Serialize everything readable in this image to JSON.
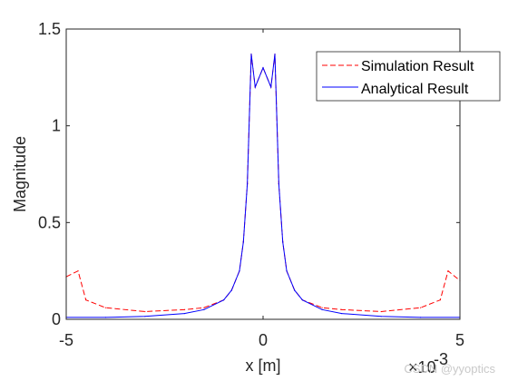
{
  "chart_data": {
    "type": "line",
    "xlabel": "x [m]",
    "ylabel": "Magnitude",
    "x_exponent_label": "×10",
    "x_exponent_power": "-3",
    "xlim": [
      -0.005,
      0.005
    ],
    "ylim": [
      0,
      1.5
    ],
    "xticks": [
      -0.005,
      0,
      0.005
    ],
    "xtick_labels": [
      "-5",
      "0",
      "5"
    ],
    "yticks": [
      0,
      0.5,
      1,
      1.5
    ],
    "ytick_labels": [
      "0",
      "0.5",
      "1",
      "1.5"
    ],
    "grid": false,
    "legend_position": "top-right",
    "series": [
      {
        "name": "Simulation Result",
        "style": "dashed",
        "color": "#ff0000",
        "x": [
          -0.005,
          -0.0047,
          -0.0045,
          -0.004,
          -0.003,
          -0.002,
          -0.0015,
          -0.001,
          -0.0008,
          -0.0006,
          -0.0005,
          -0.0004,
          -0.0003,
          -0.0002,
          0,
          0.0002,
          0.0003,
          0.0004,
          0.0005,
          0.0006,
          0.0008,
          0.001,
          0.0015,
          0.002,
          0.003,
          0.004,
          0.0045,
          0.0047,
          0.005
        ],
        "y": [
          0.22,
          0.25,
          0.1,
          0.06,
          0.04,
          0.05,
          0.06,
          0.1,
          0.15,
          0.25,
          0.4,
          0.7,
          1.37,
          1.2,
          1.3,
          1.2,
          1.37,
          0.7,
          0.4,
          0.25,
          0.15,
          0.1,
          0.06,
          0.05,
          0.04,
          0.06,
          0.1,
          0.25,
          0.2
        ]
      },
      {
        "name": "Analytical Result",
        "style": "solid",
        "color": "#0000ff",
        "x": [
          -0.005,
          -0.004,
          -0.003,
          -0.002,
          -0.0015,
          -0.001,
          -0.0008,
          -0.0006,
          -0.0005,
          -0.0004,
          -0.0003,
          -0.0002,
          0,
          0.0002,
          0.0003,
          0.0004,
          0.0005,
          0.0006,
          0.0008,
          0.001,
          0.0015,
          0.002,
          0.003,
          0.004,
          0.005
        ],
        "y": [
          0.01,
          0.01,
          0.015,
          0.03,
          0.05,
          0.1,
          0.15,
          0.25,
          0.4,
          0.7,
          1.37,
          1.2,
          1.3,
          1.2,
          1.37,
          0.7,
          0.4,
          0.25,
          0.15,
          0.1,
          0.05,
          0.03,
          0.015,
          0.01,
          0.01
        ]
      }
    ]
  },
  "watermark": "CSDN @yyoptics"
}
